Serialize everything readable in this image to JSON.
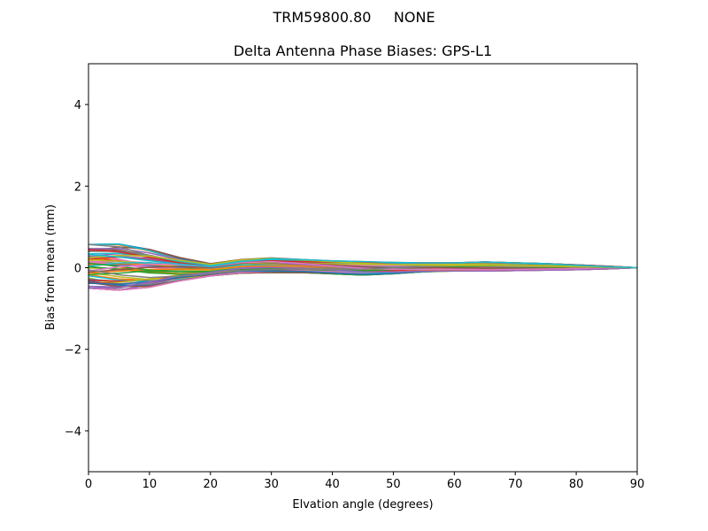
{
  "figure": {
    "suptitle": "TRM59800.80     NONE"
  },
  "chart_data": {
    "type": "line",
    "title": "Delta Antenna Phase Biases: GPS-L1",
    "suptitle": "TRM59800.80     NONE",
    "xlabel": "Elvation angle (degrees)",
    "ylabel": "Bias from mean (mm)",
    "xlim": [
      0,
      90
    ],
    "ylim": [
      -5,
      5
    ],
    "xticks": [
      0,
      10,
      20,
      30,
      40,
      50,
      60,
      70,
      80,
      90
    ],
    "xtick_labels": [
      "0",
      "10",
      "20",
      "30",
      "40",
      "50",
      "60",
      "70",
      "80",
      "90"
    ],
    "yticks": [
      -4,
      -2,
      0,
      2,
      4
    ],
    "ytick_labels": [
      "−4",
      "−2",
      "0",
      "2",
      "4"
    ],
    "grid": false,
    "legend": null,
    "x": [
      0,
      5,
      10,
      15,
      20,
      25,
      30,
      35,
      40,
      45,
      50,
      55,
      60,
      65,
      70,
      75,
      80,
      85,
      90
    ],
    "envelope": {
      "upper": [
        0.57,
        0.58,
        0.45,
        0.25,
        0.1,
        0.2,
        0.24,
        0.2,
        0.17,
        0.15,
        0.13,
        0.12,
        0.12,
        0.14,
        0.12,
        0.1,
        0.07,
        0.04,
        0.0
      ],
      "lower": [
        -0.5,
        -0.55,
        -0.48,
        -0.32,
        -0.2,
        -0.13,
        -0.12,
        -0.12,
        -0.15,
        -0.18,
        -0.15,
        -0.1,
        -0.08,
        -0.08,
        -0.07,
        -0.06,
        -0.05,
        -0.03,
        0.0
      ]
    },
    "series_count_estimate": 60,
    "series_colors": [
      "#1f77b4",
      "#ff7f0e",
      "#2ca02c",
      "#d62728",
      "#9467bd",
      "#8c564b",
      "#e377c2",
      "#7f7f7f",
      "#bcbd22",
      "#17becf"
    ],
    "note": "Many overlapping per-azimuth curves converging to 0 at 90 degrees elevation"
  }
}
